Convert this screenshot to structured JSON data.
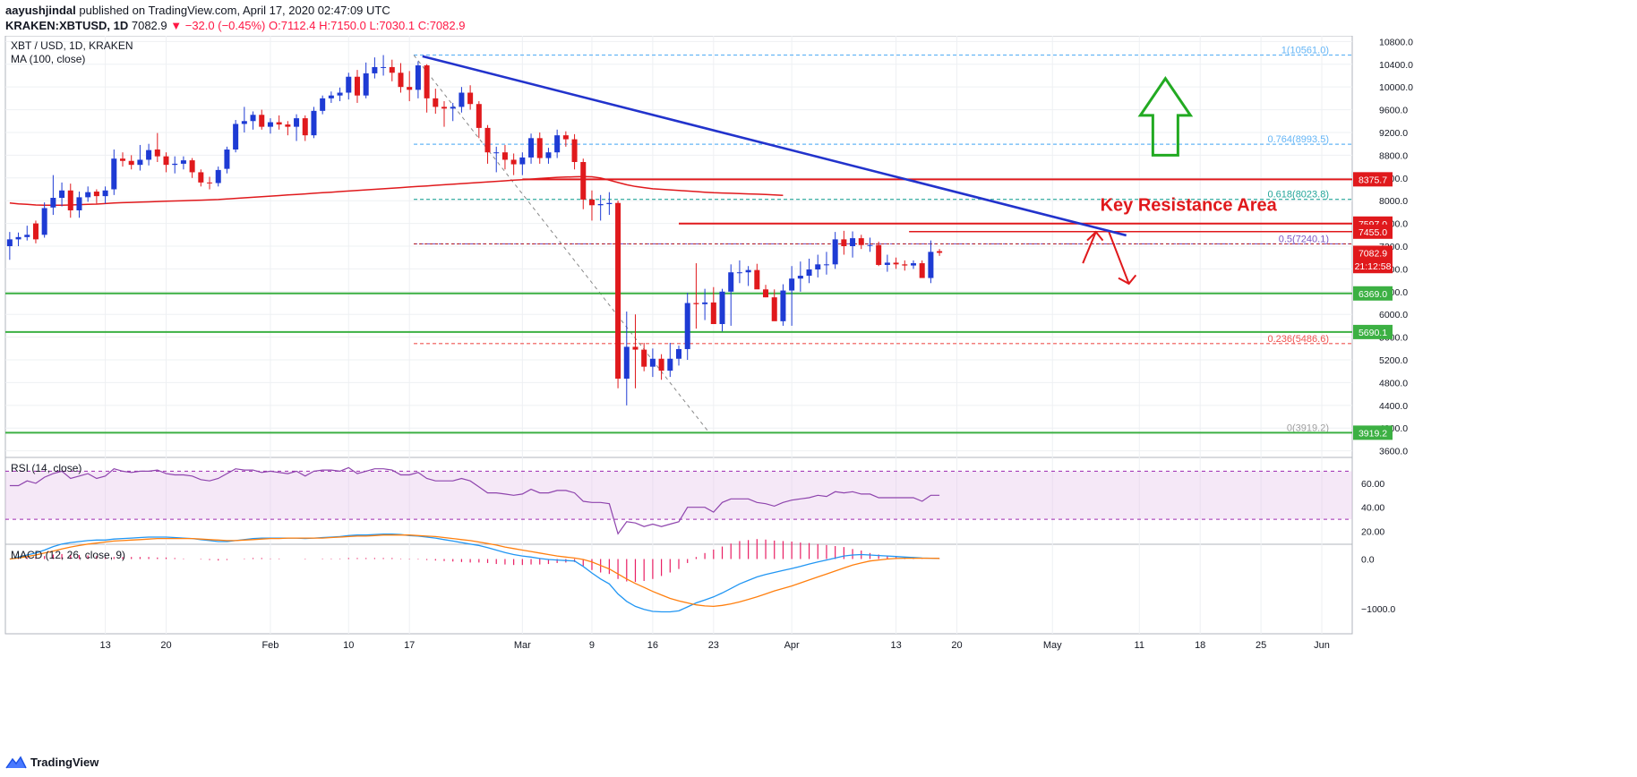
{
  "header": {
    "author": "aayushjindal",
    "published_text": "published on TradingView.com, April 17, 2020 02:47:09 UTC",
    "symbol": "KRAKEN:XBTUSD, 1D",
    "last": "7082.9",
    "change": "▼ −32.0 (−0.45%)",
    "ohlc": "O:7112.4  H:7150.0  L:7030.1  C:7082.9"
  },
  "footer": {
    "brand": "TradingView"
  },
  "colors": {
    "up": "#1e3bd4",
    "down": "#e0191c",
    "ma": "#e0191c",
    "trendline": "#2233cc",
    "resistance": "#e0191c",
    "support": "#3cb043",
    "rsi": "#8e44ad",
    "macd": "#2196f3",
    "signal": "#ff7f0e",
    "hist": "#e91e63",
    "arrow_up": "#22aa22",
    "arrow_down": "#e0191c"
  },
  "chart_data": {
    "type": "candlestick",
    "title": "XBT / USD, 1D, KRAKEN",
    "subtitle": "MA (100, close)",
    "ylim": [
      3500,
      10900
    ],
    "y_ticks": [
      "10800.0",
      "10400.0",
      "10000.0",
      "9600.0",
      "9200.0",
      "8800.0",
      "8400.0",
      "8000.0",
      "7600.0",
      "7200.0",
      "6800.0",
      "6400.0",
      "6000.0",
      "5600.0",
      "5200.0",
      "4800.0",
      "4400.0",
      "4000.0",
      "3600.0"
    ],
    "x_ticks": [
      {
        "i": 11,
        "label": "13"
      },
      {
        "i": 18,
        "label": "20"
      },
      {
        "i": 30,
        "label": "Feb"
      },
      {
        "i": 39,
        "label": "10"
      },
      {
        "i": 46,
        "label": "17"
      },
      {
        "i": 59,
        "label": "Mar"
      },
      {
        "i": 67,
        "label": "9"
      },
      {
        "i": 74,
        "label": "16"
      },
      {
        "i": 81,
        "label": "23"
      },
      {
        "i": 90,
        "label": "Apr"
      },
      {
        "i": 102,
        "label": "13"
      },
      {
        "i": 109,
        "label": "20"
      },
      {
        "i": 120,
        "label": "May"
      },
      {
        "i": 130,
        "label": "11"
      },
      {
        "i": 137,
        "label": "18"
      },
      {
        "i": 144,
        "label": "25"
      },
      {
        "i": 151,
        "label": "Jun"
      }
    ],
    "closes": [
      7320,
      7360,
      7400,
      7320,
      7870,
      8050,
      8180,
      7830,
      8060,
      8150,
      8080,
      8180,
      8740,
      8700,
      8630,
      8720,
      8890,
      8780,
      8630,
      8650,
      8710,
      8500,
      8320,
      8310,
      8540,
      8900,
      9350,
      9400,
      9510,
      9300,
      9380,
      9340,
      9300,
      9450,
      9150,
      9580,
      9800,
      9850,
      9900,
      10180,
      9850,
      10240,
      10350,
      10350,
      10250,
      10000,
      9950,
      10380,
      9800,
      9650,
      9620,
      9650,
      9900,
      9700,
      9280,
      8850,
      8850,
      8720,
      8640,
      8760,
      9100,
      8750,
      8850,
      9150,
      9080,
      8680,
      8020,
      7920,
      7940,
      7960,
      4870,
      5430,
      5380,
      5080,
      5220,
      5010,
      5220,
      5390,
      6200,
      6180,
      6210,
      5830,
      6400,
      6740,
      6740,
      6780,
      6440,
      6300,
      5880,
      6420,
      6630,
      6680,
      6790,
      6880,
      6880,
      7320,
      7200,
      7340,
      7220,
      7220,
      6870,
      6910,
      6880,
      6860,
      6900,
      6640,
      7100,
      7082.9
    ],
    "opens": [
      7200,
      7320,
      7360,
      7600,
      7400,
      7880,
      8050,
      8180,
      7830,
      8060,
      8160,
      8080,
      8200,
      8740,
      8700,
      8630,
      8720,
      8900,
      8780,
      8630,
      8650,
      8710,
      8500,
      8320,
      8310,
      8560,
      8900,
      9350,
      9400,
      9510,
      9300,
      9380,
      9340,
      9300,
      9450,
      9150,
      9580,
      9800,
      9850,
      9900,
      10180,
      9850,
      10240,
      10350,
      10350,
      10250,
      10000,
      9950,
      10380,
      9800,
      9650,
      9620,
      9650,
      9900,
      9700,
      9280,
      8850,
      8850,
      8720,
      8640,
      8760,
      9100,
      8750,
      8850,
      9150,
      9080,
      8680,
      8020,
      7920,
      7940,
      7960,
      4870,
      5430,
      5380,
      5080,
      5220,
      5010,
      5220,
      5390,
      6200,
      6180,
      6210,
      5830,
      6400,
      6740,
      6740,
      6780,
      6440,
      6300,
      5880,
      6420,
      6630,
      6680,
      6790,
      6880,
      6880,
      7320,
      7200,
      7340,
      7220,
      7220,
      6870,
      6910,
      6880,
      6860,
      6900,
      6640,
      7112.4
    ],
    "highs": [
      7450,
      7440,
      7560,
      7650,
      7970,
      8450,
      8320,
      8300,
      8160,
      8250,
      8200,
      8250,
      8900,
      8850,
      8800,
      8980,
      9000,
      9190,
      8850,
      8780,
      8780,
      8750,
      8550,
      8420,
      8600,
      8950,
      9420,
      9650,
      9570,
      9600,
      9450,
      9500,
      9400,
      9520,
      9500,
      9650,
      9850,
      9920,
      9990,
      10250,
      10300,
      10430,
      10520,
      10561,
      10480,
      10420,
      10280,
      10450,
      10400,
      9970,
      9750,
      9720,
      10000,
      10030,
      9750,
      9330,
      8950,
      8980,
      8830,
      8850,
      9180,
      9200,
      8930,
      9250,
      9220,
      9170,
      8740,
      8180,
      8100,
      8150,
      8000,
      6050,
      6000,
      5500,
      5400,
      5300,
      5500,
      5450,
      6380,
      6900,
      6450,
      6480,
      6450,
      6880,
      6950,
      6850,
      6890,
      6520,
      6440,
      6530,
      6850,
      6930,
      6980,
      7050,
      7100,
      7450,
      7470,
      7460,
      7400,
      7350,
      7280,
      7050,
      7000,
      6950,
      6950,
      6950,
      7300,
      7150
    ],
    "lows": [
      6960,
      7200,
      7300,
      7250,
      7350,
      7750,
      7900,
      7700,
      7700,
      7980,
      7950,
      7950,
      8100,
      8600,
      8550,
      8530,
      8620,
      8680,
      8500,
      8480,
      8550,
      8400,
      8250,
      8200,
      8250,
      8480,
      8850,
      9200,
      9250,
      9250,
      9180,
      9250,
      9150,
      9050,
      9050,
      9100,
      9520,
      9720,
      9750,
      9780,
      9720,
      9800,
      10150,
      10200,
      10100,
      9900,
      9750,
      9800,
      9550,
      9530,
      9300,
      9400,
      9550,
      9600,
      9100,
      8650,
      8500,
      8550,
      8450,
      8450,
      8650,
      8650,
      8650,
      8750,
      8950,
      8550,
      7850,
      7650,
      7650,
      7750,
      4700,
      4400,
      4700,
      5000,
      4900,
      4850,
      4900,
      5100,
      5200,
      5750,
      5900,
      5900,
      5700,
      5800,
      6550,
      6500,
      6600,
      6300,
      6250,
      5800,
      5800,
      6400,
      6550,
      6650,
      6700,
      6800,
      7050,
      7000,
      7150,
      7100,
      6850,
      6750,
      6800,
      6770,
      6800,
      6850,
      6550,
      7030.1
    ],
    "ma": [
      7960,
      7945,
      7935,
      7925,
      7920,
      7920,
      7920,
      7925,
      7930,
      7935,
      7940,
      7950,
      7960,
      7965,
      7970,
      7975,
      7980,
      7985,
      7990,
      7995,
      8000,
      8005,
      8010,
      8015,
      8020,
      8030,
      8040,
      8050,
      8060,
      8070,
      8080,
      8090,
      8100,
      8110,
      8120,
      8130,
      8140,
      8150,
      8160,
      8170,
      8180,
      8190,
      8200,
      8210,
      8220,
      8230,
      8240,
      8250,
      8260,
      8270,
      8280,
      8290,
      8300,
      8310,
      8320,
      8330,
      8340,
      8350,
      8360,
      8370,
      8380,
      8390,
      8400,
      8410,
      8415,
      8420,
      8425,
      8420,
      8400,
      8360,
      8320,
      8280,
      8250,
      8230,
      8210,
      8200,
      8190,
      8180,
      8170,
      8160,
      8150,
      8140,
      8135,
      8130,
      8125,
      8120,
      8115,
      8110,
      8100,
      8095
    ],
    "rsi": [
      58,
      58,
      62,
      60,
      65,
      68,
      70,
      64,
      66,
      68,
      64,
      66,
      72,
      70,
      69,
      70,
      70,
      71,
      68,
      67,
      67,
      66,
      63,
      62,
      64,
      68,
      72,
      71,
      71,
      69,
      70,
      69,
      68,
      70,
      66,
      70,
      71,
      71,
      70,
      73,
      68,
      70,
      72,
      72,
      71,
      67,
      67,
      69,
      64,
      62,
      62,
      62,
      64,
      62,
      57,
      52,
      52,
      51,
      50,
      51,
      55,
      52,
      52,
      54,
      54,
      52,
      45,
      44,
      44,
      43,
      18,
      28,
      27,
      24,
      26,
      24,
      26,
      28,
      40,
      40,
      40,
      36,
      44,
      47,
      47,
      47,
      44,
      43,
      41,
      44,
      46,
      47,
      48,
      50,
      49,
      53,
      52,
      53,
      51,
      51,
      48,
      48,
      48,
      48,
      48,
      45,
      50,
      50
    ],
    "macd": [
      0,
      40,
      80,
      120,
      180,
      250,
      300,
      330,
      350,
      370,
      380,
      380,
      400,
      410,
      420,
      430,
      440,
      440,
      440,
      430,
      420,
      410,
      390,
      370,
      350,
      350,
      370,
      390,
      410,
      420,
      420,
      420,
      420,
      420,
      410,
      420,
      430,
      440,
      450,
      470,
      480,
      480,
      490,
      500,
      500,
      490,
      470,
      460,
      440,
      420,
      390,
      360,
      330,
      300,
      270,
      230,
      180,
      130,
      90,
      60,
      40,
      10,
      -10,
      -20,
      -30,
      -40,
      -150,
      -280,
      -400,
      -500,
      -700,
      -850,
      -950,
      -1010,
      -1050,
      -1060,
      -1060,
      -1040,
      -960,
      -880,
      -820,
      -760,
      -680,
      -590,
      -500,
      -430,
      -360,
      -310,
      -270,
      -230,
      -190,
      -150,
      -100,
      -60,
      -20,
      20,
      60,
      80,
      90,
      80,
      70,
      60,
      50,
      40,
      30,
      20,
      15,
      10
    ],
    "signal": [
      0,
      20,
      50,
      80,
      120,
      160,
      200,
      240,
      270,
      300,
      320,
      340,
      360,
      370,
      380,
      390,
      400,
      410,
      410,
      410,
      410,
      410,
      400,
      390,
      380,
      370,
      370,
      380,
      390,
      400,
      410,
      410,
      420,
      420,
      420,
      420,
      420,
      430,
      440,
      450,
      460,
      460,
      470,
      480,
      480,
      480,
      480,
      470,
      460,
      450,
      430,
      410,
      390,
      370,
      340,
      310,
      280,
      240,
      210,
      180,
      150,
      120,
      90,
      60,
      40,
      20,
      -10,
      -60,
      -130,
      -200,
      -300,
      -400,
      -490,
      -570,
      -650,
      -720,
      -790,
      -840,
      -880,
      -920,
      -940,
      -950,
      -930,
      -900,
      -860,
      -810,
      -760,
      -700,
      -640,
      -590,
      -540,
      -480,
      -420,
      -360,
      -300,
      -240,
      -180,
      -120,
      -80,
      -40,
      -20,
      0,
      10,
      15,
      15,
      15,
      15,
      12
    ],
    "levels": {
      "fib_top": {
        "value": 10561.0,
        "label": "1(10561.0)"
      },
      "fib_0764": {
        "value": 8993.5,
        "label": "0.764(8993.5)"
      },
      "fib_0618": {
        "value": 8023.8,
        "label": "0.618(8023.8)"
      },
      "fib_05": {
        "value": 7240.1,
        "label": "0.5(7240.1)"
      },
      "fib_0236": {
        "value": 5486.6,
        "label": "0.236(5486.6)"
      },
      "fib_0": {
        "value": 3919.2,
        "label": "0(3919.2)"
      },
      "resistance": [
        8375.7,
        7597.0,
        7455.0
      ],
      "support": [
        6369.0,
        5690.1,
        3919.2
      ]
    },
    "price_tags": [
      {
        "value": 8375.7,
        "label": "8375.7",
        "color": "#e0191c"
      },
      {
        "value": 7597.0,
        "label": "7597.0",
        "color": "#e0191c"
      },
      {
        "value": 7455.0,
        "label": "7455.0",
        "color": "#e0191c"
      },
      {
        "value": 7082.9,
        "label": "7082.9",
        "color": "#e0191c"
      },
      {
        "value": 6850.0,
        "label": "21:12:58",
        "color": "#e0191c"
      },
      {
        "value": 6369.0,
        "label": "6369.0",
        "color": "#3cb043"
      },
      {
        "value": 5690.1,
        "label": "5690.1",
        "color": "#3cb043"
      },
      {
        "value": 3919.2,
        "label": "3919.2",
        "color": "#3cb043"
      }
    ],
    "annotation": "Key Resistance Area",
    "rsi_panel": {
      "title": "RSI (14, close)",
      "ticks": [
        "60.00",
        "40.00",
        "20.00"
      ]
    },
    "macd_panel": {
      "title": "MACD (12, 26, close, 9)",
      "ticks": [
        "0.0",
        "−1000.0"
      ]
    }
  }
}
